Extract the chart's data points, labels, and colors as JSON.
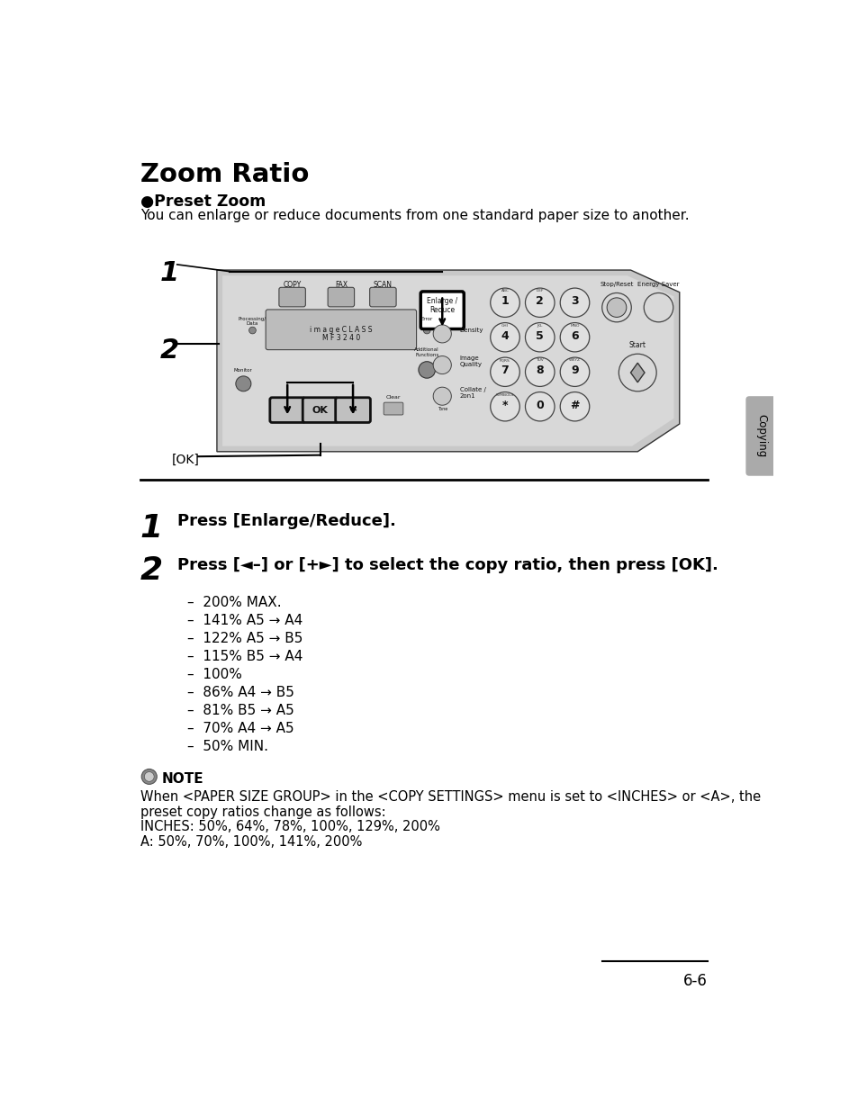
{
  "bg_color": "#ffffff",
  "title": "Zoom Ratio",
  "subtitle_bullet": "●",
  "subtitle": "Preset Zoom",
  "intro_text": "You can enlarge or reduce documents from one standard paper size to another.",
  "step1_num": "1",
  "step1_text": "Press [Enlarge/Reduce].",
  "step2_num": "2",
  "step2_text": "Press [◄–] or [+►] to select the copy ratio, then press [OK].",
  "bullet_items": [
    "–  200% MAX.",
    "–  141% A5 → A4",
    "–  122% A5 → B5",
    "–  115% B5 → A4",
    "–  100%",
    "–  86% A4 → B5",
    "–  81% B5 → A5",
    "–  70% A4 → A5",
    "–  50% MIN."
  ],
  "note_label": "NOTE",
  "note_text1": "When <PAPER SIZE GROUP> in the <COPY SETTINGS> menu is set to <INCHES> or <A>, the",
  "note_text2": "preset copy ratios change as follows:",
  "note_text3": "INCHES: 50%, 64%, 78%, 100%, 129%, 200%",
  "note_text4": "A: 50%, 70%, 100%, 141%, 200%",
  "page_num": "6-6",
  "side_label": "Copying",
  "ok_label": "[OK]",
  "label1": "1",
  "label2": "2",
  "device_panel_color": "#d0d0d0",
  "device_body_color": "#c8c8c8",
  "button_color": "#e8e8e8",
  "highlight_color": "#000000"
}
